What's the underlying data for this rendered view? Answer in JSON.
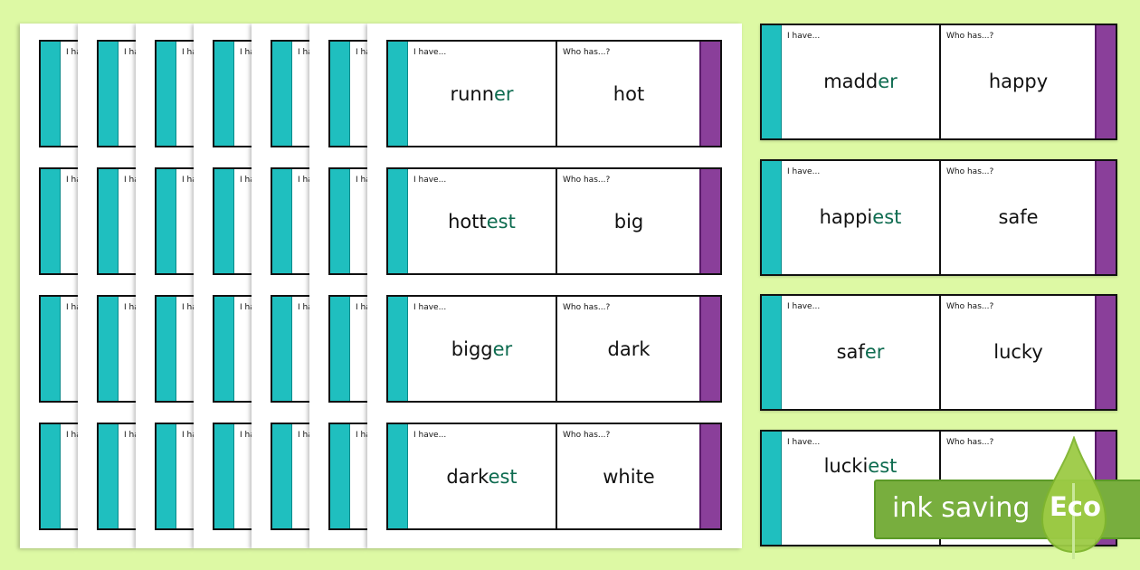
{
  "labels": {
    "i_have": "I have...",
    "who_has": "Who has...?"
  },
  "colors": {
    "background": "#ddf9a4",
    "teal_strip": "#1fbfbf",
    "purple_strip": "#8a3f9a",
    "suffix": "#0d6b4f",
    "badge": "#78ae3e"
  },
  "back_pages_count": 6,
  "front_page": {
    "cards": [
      {
        "base": "runn",
        "suffix": "er",
        "who_has": "hot"
      },
      {
        "base": "hott",
        "suffix": "est",
        "who_has": "big"
      },
      {
        "base": "bigg",
        "suffix": "er",
        "who_has": "dark"
      },
      {
        "base": "dark",
        "suffix": "est",
        "who_has": "white"
      }
    ]
  },
  "right_column": {
    "cards": [
      {
        "base": "madd",
        "suffix": "er",
        "who_has": "happy"
      },
      {
        "base": "happi",
        "suffix": "est",
        "who_has": "safe"
      },
      {
        "base": "saf",
        "suffix": "er",
        "who_has": "lucky"
      },
      {
        "base": "lucki",
        "suffix": "est",
        "who_has": ""
      }
    ]
  },
  "badge": {
    "text": "ink saving",
    "eco": "Eco",
    "icon": "leaf-drop-icon"
  }
}
